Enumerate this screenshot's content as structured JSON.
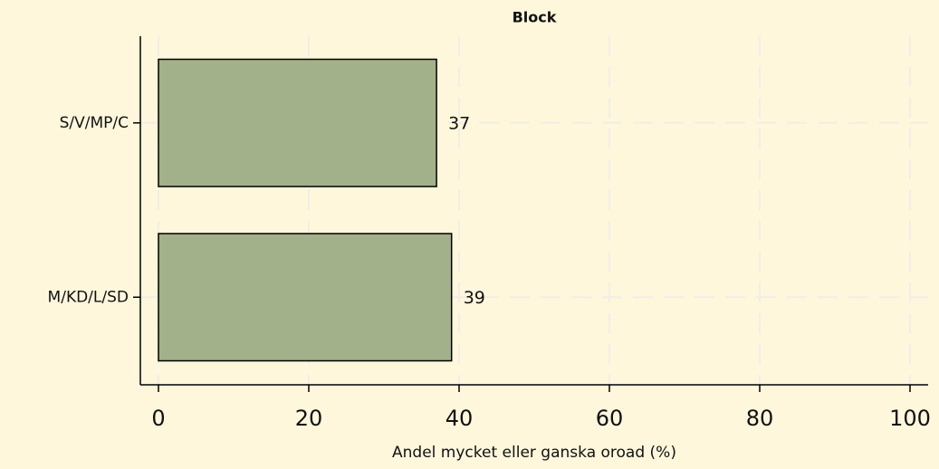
{
  "chart_data": {
    "type": "barh",
    "title": "Block",
    "categories": [
      "S/V/MP/C",
      "M/KD/L/SD"
    ],
    "values": [
      37,
      39
    ],
    "color": "#a3b18a",
    "xlabel": "Andel mycket eller ganska oroad (%)",
    "xlim": [
      0,
      100
    ],
    "xticks": [
      0,
      20,
      40,
      60,
      80,
      100
    ],
    "grid": true
  }
}
